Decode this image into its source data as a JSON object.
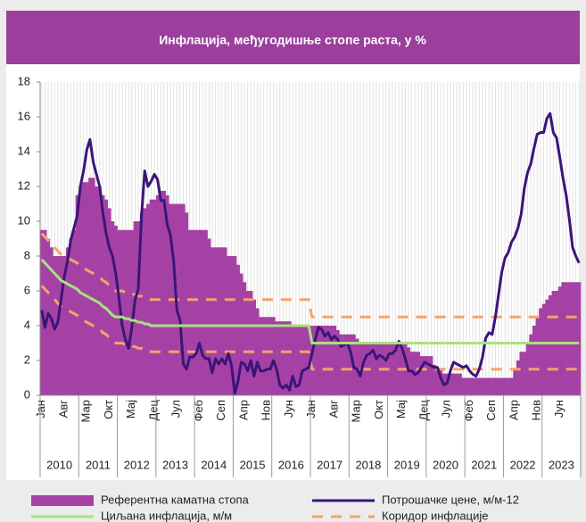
{
  "chart_data": {
    "type": "line",
    "title": "Инфлација, међугодишње стопе раста, у %",
    "categories": [
      "Јан",
      null,
      null,
      null,
      null,
      null,
      null,
      "Авг",
      null,
      null,
      null,
      null,
      null,
      null,
      "Мар",
      null,
      null,
      null,
      null,
      null,
      null,
      "Окт",
      null,
      null,
      null,
      null,
      null,
      null,
      "Мај",
      null,
      null,
      null,
      null,
      null,
      null,
      "Дец",
      null,
      null,
      null,
      null,
      null,
      null,
      "Јул",
      null,
      null,
      null,
      null,
      null,
      null,
      "Феб",
      null,
      null,
      null,
      null,
      null,
      null,
      "Сеп",
      null,
      null,
      null,
      null,
      null,
      null,
      "Апр",
      null,
      null,
      null,
      null,
      null,
      null,
      "Нов",
      null,
      null,
      null,
      null,
      null,
      null,
      "Јун",
      null,
      null,
      null,
      null,
      null,
      null,
      "Јан",
      null,
      null,
      null,
      null,
      null,
      null,
      "Авг",
      null,
      null,
      null,
      null,
      null,
      null,
      "Мар",
      null,
      null,
      null,
      null,
      null,
      null,
      "Окт",
      null,
      null,
      null,
      null,
      null,
      null,
      "Мај",
      null,
      null,
      null,
      null,
      null,
      null,
      "Дец",
      null,
      null,
      null,
      null,
      null,
      null,
      "Јул",
      null,
      null,
      null,
      null,
      null,
      null,
      "Феб",
      null,
      null,
      null,
      null,
      null,
      null,
      "Сеп",
      null,
      null,
      null,
      null,
      null,
      null,
      "Апр",
      null,
      null,
      null,
      null,
      null,
      null,
      "Нов",
      null,
      null,
      null,
      null,
      null,
      null,
      "Јун",
      null,
      null,
      null,
      null,
      null,
      null
    ],
    "years": [
      "2010",
      "2011",
      "2012",
      "2013",
      "2014",
      "2015",
      "2016",
      "2017",
      "2018",
      "2019",
      "2020",
      "2021",
      "2022",
      "2023"
    ],
    "ylim": [
      0,
      18
    ],
    "yticks": [
      0,
      2,
      4,
      6,
      8,
      10,
      12,
      14,
      16,
      18
    ],
    "series": [
      {
        "name": "Референтна каматна стопа",
        "type": "bar",
        "color": "#a541a5",
        "values": [
          9.5,
          9.5,
          9,
          8.5,
          8,
          8,
          8,
          8,
          8.5,
          9,
          9.5,
          11.5,
          12,
          12.25,
          12.25,
          12.5,
          12.5,
          12,
          12,
          11.5,
          11.25,
          10.75,
          10,
          9.75,
          9.5,
          9.5,
          9.5,
          9.5,
          9.5,
          10,
          10,
          10.5,
          10.75,
          11,
          11.25,
          11.25,
          11.5,
          11.75,
          11.75,
          11.5,
          11,
          11,
          11,
          11,
          11,
          10.5,
          9.5,
          9.5,
          9.5,
          9.5,
          9.5,
          9.5,
          9,
          8.5,
          8.5,
          8.5,
          8.5,
          8.5,
          8,
          8,
          8,
          7.5,
          7,
          6.5,
          6,
          6,
          5.5,
          5,
          4.5,
          4.5,
          4.5,
          4.5,
          4.5,
          4.25,
          4.25,
          4.25,
          4.25,
          4.25,
          4,
          4,
          4,
          4,
          4,
          4,
          4,
          4,
          4,
          4,
          4,
          4,
          4,
          4,
          3.75,
          3.5,
          3.5,
          3.5,
          3.5,
          3.5,
          3.25,
          3,
          3,
          3,
          3,
          3,
          3,
          3,
          3,
          3,
          3,
          3,
          3,
          3,
          3,
          3,
          2.75,
          2.5,
          2.5,
          2.5,
          2.25,
          2.25,
          2.25,
          2.25,
          1.75,
          1.5,
          1.5,
          1.25,
          1.25,
          1.25,
          1.25,
          1.25,
          1.25,
          1,
          1,
          1,
          1,
          1,
          1,
          1,
          1,
          1,
          1,
          1,
          1,
          1,
          1,
          1,
          1,
          1.5,
          2,
          2.5,
          2.5,
          3,
          3.5,
          4,
          4.5,
          5,
          5.25,
          5.5,
          5.75,
          6,
          6,
          6.25,
          6.5,
          6.5,
          6.5,
          6.5,
          6.5,
          6.5
        ]
      },
      {
        "name": "Потрошачке цене, м/м-12",
        "type": "line",
        "color": "#3b1578",
        "values": [
          4.9,
          3.9,
          4.7,
          4.4,
          3.8,
          4.2,
          5.5,
          6.8,
          7.7,
          8.9,
          9.6,
          10.3,
          12,
          12.9,
          14.1,
          14.7,
          13.4,
          12.7,
          12,
          10.5,
          9.3,
          8.5,
          8,
          7,
          5.6,
          4,
          3.2,
          2.7,
          3.9,
          5.5,
          6.1,
          10.3,
          12.9,
          12,
          12.3,
          12.7,
          12.4,
          11.2,
          11.2,
          9.8,
          9.2,
          7.7,
          4.9,
          4.3,
          1.8,
          1.5,
          2.2,
          2.2,
          2.4,
          3,
          2.3,
          2.1,
          2.1,
          1.3,
          2.1,
          1.8,
          2.1,
          1.8,
          2.4,
          1.7,
          0.1,
          0.8,
          1.9,
          1.8,
          1.4,
          2,
          1.1,
          1.9,
          1.4,
          1.4,
          1.5,
          1.5,
          2,
          1.5,
          0.6,
          0.4,
          0.6,
          0.3,
          1.1,
          0.5,
          0.6,
          1.4,
          1.5,
          1.6,
          2.4,
          3.2,
          3.9,
          3.8,
          3.4,
          3.6,
          3.2,
          3.4,
          3.2,
          2.8,
          2.9,
          3,
          2.5,
          1.6,
          1.5,
          1.1,
          1.9,
          2.3,
          2.4,
          2.6,
          2.1,
          2.3,
          2.2,
          2,
          2.4,
          2.4,
          2.6,
          3.1,
          2.7,
          2.1,
          1.4,
          1.4,
          1.2,
          1.3,
          1.6,
          1.9,
          1.8,
          1.7,
          1.6,
          1.6,
          1,
          0.6,
          0.7,
          1.4,
          1.9,
          1.8,
          1.7,
          1.6,
          1.7,
          1.4,
          1.2,
          1.1,
          1.5,
          2.2,
          3.3,
          3.6,
          3.5,
          4.5,
          5.8,
          7.1,
          7.9,
          8.2,
          8.8,
          9.1,
          9.6,
          10.4,
          11.9,
          12.8,
          13.3,
          14.2,
          15,
          15.1,
          15.1,
          15.9,
          16.2,
          15.1,
          14.8,
          13.7,
          12.5,
          11.5,
          10.1,
          8.5,
          8,
          7.6
        ]
      },
      {
        "name": "Циљана инфлација, м/м",
        "type": "line",
        "color": "#a8e27d",
        "values": [
          7.8,
          7.6,
          7.4,
          7.2,
          7,
          6.8,
          6.6,
          6.5,
          6.4,
          6.3,
          6.2,
          6.1,
          5.9,
          5.8,
          5.7,
          5.6,
          5.5,
          5.4,
          5.3,
          5.1,
          5,
          4.8,
          4.6,
          4.5,
          4.5,
          4.5,
          4.4,
          4.4,
          4.3,
          4.3,
          4.2,
          4.2,
          4.1,
          4.1,
          4,
          4,
          4,
          4,
          4,
          4,
          4,
          4,
          4,
          4,
          4,
          4,
          4,
          4,
          4,
          4,
          4,
          4,
          4,
          4,
          4,
          4,
          4,
          4,
          4,
          4,
          4,
          4,
          4,
          4,
          4,
          4,
          4,
          4,
          4,
          4,
          4,
          4,
          4,
          4,
          4,
          4,
          4,
          4,
          4,
          4,
          4,
          4,
          4,
          4,
          3,
          3,
          3,
          3,
          3,
          3,
          3,
          3,
          3,
          3,
          3,
          3,
          3,
          3,
          3,
          3,
          3,
          3,
          3,
          3,
          3,
          3,
          3,
          3,
          3,
          3,
          3,
          3,
          3,
          3,
          3,
          3,
          3,
          3,
          3,
          3,
          3,
          3,
          3,
          3,
          3,
          3,
          3,
          3,
          3,
          3,
          3,
          3,
          3,
          3,
          3,
          3,
          3,
          3,
          3,
          3,
          3,
          3,
          3,
          3,
          3,
          3,
          3,
          3,
          3,
          3,
          3,
          3,
          3,
          3,
          3,
          3,
          3,
          3,
          3,
          3,
          3,
          3,
          3,
          3,
          3,
          3,
          3,
          3
        ]
      },
      {
        "name": "Коридор инфлације",
        "type": "band",
        "color": "#f4a36b",
        "values": [
          9.3,
          9.1,
          8.9,
          8.7,
          8.5,
          8.3,
          8.1,
          8,
          7.9,
          7.8,
          7.7,
          7.6,
          7.4,
          7.3,
          7.2,
          7.1,
          7,
          6.9,
          6.8,
          6.6,
          6.5,
          6.3,
          6.1,
          6,
          6,
          6,
          5.9,
          5.9,
          5.8,
          5.8,
          5.7,
          5.7,
          5.6,
          5.6,
          5.5,
          5.5,
          5.5,
          5.5,
          5.5,
          5.5,
          5.5,
          5.5,
          5.5,
          5.5,
          5.5,
          5.5,
          5.5,
          5.5,
          5.5,
          5.5,
          5.5,
          5.5,
          5.5,
          5.5,
          5.5,
          5.5,
          5.5,
          5.5,
          5.5,
          5.5,
          5.5,
          5.5,
          5.5,
          5.5,
          5.5,
          5.5,
          5.5,
          5.5,
          5.5,
          5.5,
          5.5,
          5.5,
          5.5,
          5.5,
          5.5,
          5.5,
          5.5,
          5.5,
          5.5,
          5.5,
          5.5,
          5.5,
          5.5,
          5.5,
          4.5,
          4.5,
          4.5,
          4.5,
          4.5,
          4.5,
          4.5,
          4.5,
          4.5,
          4.5,
          4.5,
          4.5,
          4.5,
          4.5,
          4.5,
          4.5,
          4.5,
          4.5,
          4.5,
          4.5,
          4.5,
          4.5,
          4.5,
          4.5,
          4.5,
          4.5,
          4.5,
          4.5,
          4.5,
          4.5,
          4.5,
          4.5,
          4.5,
          4.5,
          4.5,
          4.5,
          4.5,
          4.5,
          4.5,
          4.5,
          4.5,
          4.5,
          4.5,
          4.5,
          4.5,
          4.5,
          4.5,
          4.5,
          4.5,
          4.5,
          4.5,
          4.5,
          4.5,
          4.5,
          4.5,
          4.5,
          4.5,
          4.5,
          4.5,
          4.5,
          4.5,
          4.5,
          4.5,
          4.5,
          4.5,
          4.5,
          4.5,
          4.5,
          4.5,
          4.5,
          4.5,
          4.5,
          4.5,
          4.5,
          4.5,
          4.5,
          4.5,
          4.5,
          4.5,
          4.5,
          4.5,
          4.5,
          4.5,
          4.5
        ],
        "lower": [
          6.3,
          6.1,
          5.9,
          5.7,
          5.5,
          5.3,
          5.1,
          5,
          4.9,
          4.8,
          4.7,
          4.6,
          4.4,
          4.3,
          4.2,
          4.1,
          4,
          3.9,
          3.8,
          3.6,
          3.5,
          3.3,
          3.1,
          3,
          3,
          3,
          2.9,
          2.9,
          2.8,
          2.8,
          2.7,
          2.7,
          2.6,
          2.6,
          2.5,
          2.5,
          2.5,
          2.5,
          2.5,
          2.5,
          2.5,
          2.5,
          2.5,
          2.5,
          2.5,
          2.5,
          2.5,
          2.5,
          2.5,
          2.5,
          2.5,
          2.5,
          2.5,
          2.5,
          2.5,
          2.5,
          2.5,
          2.5,
          2.5,
          2.5,
          2.5,
          2.5,
          2.5,
          2.5,
          2.5,
          2.5,
          2.5,
          2.5,
          2.5,
          2.5,
          2.5,
          2.5,
          2.5,
          2.5,
          2.5,
          2.5,
          2.5,
          2.5,
          2.5,
          2.5,
          2.5,
          2.5,
          2.5,
          2.5,
          1.5,
          1.5,
          1.5,
          1.5,
          1.5,
          1.5,
          1.5,
          1.5,
          1.5,
          1.5,
          1.5,
          1.5,
          1.5,
          1.5,
          1.5,
          1.5,
          1.5,
          1.5,
          1.5,
          1.5,
          1.5,
          1.5,
          1.5,
          1.5,
          1.5,
          1.5,
          1.5,
          1.5,
          1.5,
          1.5,
          1.5,
          1.5,
          1.5,
          1.5,
          1.5,
          1.5,
          1.5,
          1.5,
          1.5,
          1.5,
          1.5,
          1.5,
          1.5,
          1.5,
          1.5,
          1.5,
          1.5,
          1.5,
          1.5,
          1.5,
          1.5,
          1.5,
          1.5,
          1.5,
          1.5,
          1.5,
          1.5,
          1.5,
          1.5,
          1.5,
          1.5,
          1.5,
          1.5,
          1.5,
          1.5,
          1.5,
          1.5,
          1.5,
          1.5,
          1.5,
          1.5,
          1.5,
          1.5,
          1.5,
          1.5,
          1.5,
          1.5,
          1.5,
          1.5,
          1.5,
          1.5,
          1.5,
          1.5,
          1.5
        ]
      }
    ]
  }
}
